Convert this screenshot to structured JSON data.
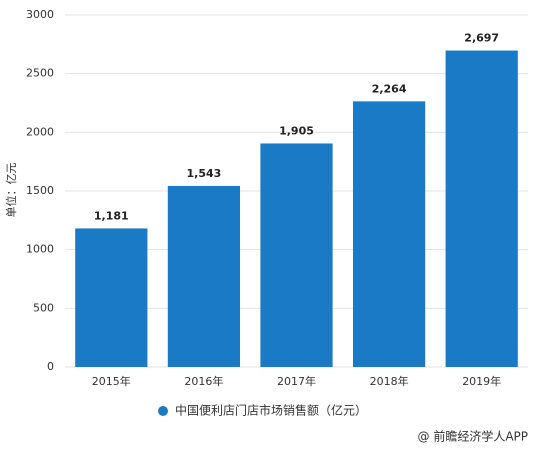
{
  "chart_data": {
    "type": "bar",
    "y_axis_label": "单位：亿元",
    "categories": [
      "2015年",
      "2016年",
      "2017年",
      "2018年",
      "2019年"
    ],
    "series": [
      {
        "name": "中国便利店门店市场销售额（亿元）",
        "color": "#1b7ac5",
        "values": [
          1181,
          1543,
          1905,
          2264,
          2697
        ],
        "value_labels": [
          "1,181",
          "1,543",
          "1,905",
          "2,264",
          "2,697"
        ]
      }
    ],
    "ylim": [
      0,
      3000
    ],
    "yticks": [
      0,
      500,
      1000,
      1500,
      2000,
      2500,
      3000
    ],
    "grid": true,
    "source": "@ 前瞻经济学人APP"
  }
}
